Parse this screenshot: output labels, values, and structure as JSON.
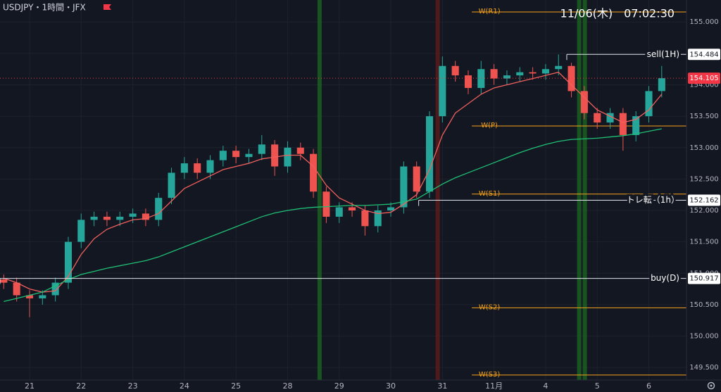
{
  "chart_data": {
    "type": "candlestick",
    "title": "USDJPY・1時間・JFX",
    "clock": "11/06(木)　07:02:30",
    "xlim": [
      -0.573,
      12.73
    ],
    "ylim": [
      149.3,
      155.35
    ],
    "xticks": [
      {
        "value": 0,
        "label": "21"
      },
      {
        "value": 1,
        "label": "22"
      },
      {
        "value": 2,
        "label": "23"
      },
      {
        "value": 3,
        "label": "24"
      },
      {
        "value": 4,
        "label": "25"
      },
      {
        "value": 5,
        "label": "28"
      },
      {
        "value": 6,
        "label": "29"
      },
      {
        "value": 7,
        "label": "30"
      },
      {
        "value": 8,
        "label": "31"
      },
      {
        "value": 9,
        "label": "11月"
      },
      {
        "value": 10,
        "label": "4"
      },
      {
        "value": 11,
        "label": "5"
      },
      {
        "value": 12,
        "label": "6"
      }
    ],
    "yticks": [
      {
        "value": 149.5,
        "label": "149.500"
      },
      {
        "value": 150,
        "label": "150.000"
      },
      {
        "value": 150.5,
        "label": "150.500"
      },
      {
        "value": 151,
        "label": "151.000"
      },
      {
        "value": 151.5,
        "label": "151.500"
      },
      {
        "value": 152,
        "label": "152.000"
      },
      {
        "value": 152.5,
        "label": "152.500"
      },
      {
        "value": 153,
        "label": "153.000"
      },
      {
        "value": 153.5,
        "label": "153.500"
      },
      {
        "value": 154,
        "label": "154.000"
      },
      {
        "value": 154.5,
        "label": "154.500"
      },
      {
        "value": 155,
        "label": "155.000"
      }
    ],
    "up_color": "#26a69a",
    "down_color": "#ef5350",
    "x": [
      -0.5,
      -0.25,
      0,
      0.25,
      0.5,
      0.75,
      1,
      1.25,
      1.5,
      1.75,
      2,
      2.25,
      2.5,
      2.75,
      3,
      3.25,
      3.5,
      3.75,
      4,
      4.25,
      4.5,
      4.75,
      5,
      5.25,
      5.5,
      5.75,
      6,
      6.25,
      6.5,
      6.75,
      7,
      7.25,
      7.5,
      7.75,
      8,
      8.25,
      8.5,
      8.75,
      9,
      9.25,
      9.5,
      9.75,
      10,
      10.25,
      10.5,
      10.75,
      11,
      11.25,
      11.5,
      11.75,
      12,
      12.25
    ],
    "open": [
      150.9,
      150.85,
      150.65,
      150.6,
      150.65,
      150.85,
      151.5,
      151.85,
      151.9,
      151.85,
      151.9,
      151.95,
      151.85,
      152.2,
      152.6,
      152.75,
      152.6,
      152.8,
      152.95,
      152.85,
      152.9,
      153.05,
      152.7,
      153.0,
      152.9,
      152.3,
      151.9,
      152.05,
      152.0,
      151.75,
      152.0,
      152.05,
      152.7,
      152.3,
      153.5,
      154.3,
      154.15,
      153.95,
      154.25,
      154.1,
      154.15,
      154.2,
      154.18,
      154.25,
      154.3,
      153.9,
      153.55,
      153.4,
      153.55,
      153.2,
      153.5,
      153.9
    ],
    "high": [
      150.98,
      150.93,
      150.73,
      150.73,
      150.93,
      151.58,
      151.95,
      151.98,
      151.98,
      151.98,
      152.03,
      152.03,
      152.28,
      152.68,
      152.85,
      152.83,
      152.88,
      153.03,
      153.03,
      152.98,
      153.2,
      153.12,
      153.1,
      153.08,
      152.98,
      152.38,
      152.13,
      152.13,
      152.08,
      152.08,
      152.13,
      152.78,
      152.78,
      153.58,
      154.45,
      154.38,
      154.23,
      154.38,
      154.33,
      154.23,
      154.28,
      154.28,
      154.33,
      154.484,
      154.35,
      153.98,
      153.63,
      153.63,
      153.63,
      153.58,
      153.98,
      154.3
    ],
    "low": [
      150.75,
      150.55,
      150.3,
      150.5,
      150.55,
      150.75,
      151.4,
      151.75,
      151.75,
      151.75,
      151.8,
      151.75,
      151.75,
      152.1,
      152.5,
      152.5,
      152.5,
      152.7,
      152.75,
      152.75,
      152.8,
      152.55,
      152.6,
      152.8,
      152.2,
      151.8,
      151.8,
      151.9,
      151.6,
      151.65,
      151.9,
      151.95,
      152.2,
      152.2,
      153.4,
      154.05,
      153.85,
      153.85,
      154.0,
      154.0,
      154.05,
      154.08,
      154.08,
      154.15,
      153.8,
      153.45,
      153.3,
      153.3,
      152.95,
      153.1,
      153.4,
      153.8
    ],
    "close": [
      150.85,
      150.65,
      150.6,
      150.65,
      150.85,
      151.5,
      151.85,
      151.9,
      151.85,
      151.9,
      151.95,
      151.85,
      152.2,
      152.6,
      152.75,
      152.6,
      152.8,
      152.95,
      152.85,
      152.9,
      153.05,
      152.7,
      153.0,
      152.9,
      152.3,
      151.9,
      152.05,
      152.0,
      151.75,
      152.0,
      152.05,
      152.7,
      152.3,
      153.5,
      154.3,
      154.15,
      153.95,
      154.25,
      154.1,
      154.15,
      154.2,
      154.18,
      154.25,
      154.3,
      153.9,
      153.55,
      153.4,
      153.55,
      153.2,
      153.5,
      153.9,
      154.105
    ],
    "last_color": "#f23645",
    "lines": [
      {
        "color": "#f0605d",
        "values": [
          150.92,
          150.85,
          150.75,
          150.7,
          150.72,
          150.95,
          151.3,
          151.55,
          151.7,
          151.78,
          151.85,
          151.87,
          151.95,
          152.15,
          152.35,
          152.45,
          152.55,
          152.65,
          152.7,
          152.75,
          152.82,
          152.85,
          152.88,
          152.88,
          152.7,
          152.4,
          152.2,
          152.1,
          152.0,
          151.95,
          151.97,
          152.1,
          152.25,
          152.65,
          153.2,
          153.55,
          153.7,
          153.85,
          153.95,
          154.0,
          154.05,
          154.1,
          154.15,
          154.2,
          154.0,
          153.8,
          153.6,
          153.5,
          153.4,
          153.45,
          153.6,
          153.85
        ]
      },
      {
        "color": "#1fbf75",
        "values": [
          150.55,
          150.6,
          150.65,
          150.7,
          150.8,
          150.9,
          150.98,
          151.03,
          151.08,
          151.12,
          151.16,
          151.2,
          151.26,
          151.34,
          151.42,
          151.5,
          151.58,
          151.66,
          151.74,
          151.82,
          151.9,
          151.96,
          152.0,
          152.03,
          152.05,
          152.06,
          152.07,
          152.08,
          152.08,
          152.09,
          152.1,
          152.14,
          152.18,
          152.3,
          152.42,
          152.52,
          152.6,
          152.68,
          152.76,
          152.84,
          152.92,
          152.99,
          153.05,
          153.1,
          153.13,
          153.14,
          153.15,
          153.17,
          153.19,
          153.22,
          153.26,
          153.3
        ]
      }
    ],
    "bands": [
      {
        "x": 5.62,
        "color": "#1b5e20"
      },
      {
        "x": 7.91,
        "color": "#5c1a1a"
      },
      {
        "x": 10.65,
        "color": "#1b5e20"
      },
      {
        "x": 10.76,
        "color": "#1b5e20"
      }
    ],
    "pivots": [
      {
        "label": "W(R1)",
        "value": 155.16
      },
      {
        "label": "W(P)",
        "value": 153.345
      },
      {
        "label": "W(S1)",
        "value": 152.26
      },
      {
        "label": "W(S2)",
        "value": 150.45
      },
      {
        "label": "W(S3)",
        "value": 149.38
      }
    ],
    "pivot_from": 8.57,
    "pivot_color": "#f7a21b",
    "levels": [
      {
        "label": "sell(1H)",
        "value": 154.484,
        "from": 10.41
      },
      {
        "label": "トレ転（1h）",
        "value": 152.162,
        "from": 7.54
      },
      {
        "label": "buy(D)",
        "value": 150.917,
        "from": -0.573
      }
    ]
  }
}
